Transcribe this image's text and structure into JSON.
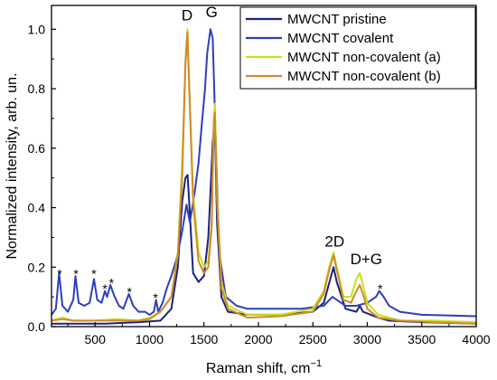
{
  "chart_data": {
    "type": "line",
    "xlabel": "Raman shift, cm",
    "xlabel_sup": "−1",
    "ylabel": "Normalized intensity, arb. un.",
    "xlim": [
      100,
      4000
    ],
    "ylim": [
      0,
      1.08
    ],
    "x_ticks": [
      500,
      1000,
      1500,
      2000,
      2500,
      3000,
      3500,
      4000
    ],
    "y_ticks": [
      0.0,
      0.2,
      0.4,
      0.6,
      0.8,
      1.0
    ],
    "legend_position": "top-right",
    "grid": false,
    "series": [
      {
        "name": "MWCNT pristine",
        "color": "#1a237e",
        "points": [
          [
            100,
            0.01
          ],
          [
            300,
            0.01
          ],
          [
            600,
            0.01
          ],
          [
            900,
            0.015
          ],
          [
            1100,
            0.02
          ],
          [
            1200,
            0.06
          ],
          [
            1260,
            0.2
          ],
          [
            1300,
            0.42
          ],
          [
            1330,
            0.5
          ],
          [
            1350,
            0.51
          ],
          [
            1370,
            0.38
          ],
          [
            1400,
            0.18
          ],
          [
            1450,
            0.15
          ],
          [
            1500,
            0.17
          ],
          [
            1540,
            0.3
          ],
          [
            1560,
            0.45
          ],
          [
            1580,
            0.62
          ],
          [
            1590,
            0.66
          ],
          [
            1605,
            0.6
          ],
          [
            1620,
            0.35
          ],
          [
            1660,
            0.1
          ],
          [
            1720,
            0.05
          ],
          [
            1900,
            0.04
          ],
          [
            2200,
            0.04
          ],
          [
            2500,
            0.05
          ],
          [
            2600,
            0.08
          ],
          [
            2660,
            0.16
          ],
          [
            2690,
            0.2
          ],
          [
            2720,
            0.15
          ],
          [
            2800,
            0.06
          ],
          [
            2900,
            0.05
          ],
          [
            2930,
            0.07
          ],
          [
            2960,
            0.05
          ],
          [
            3100,
            0.03
          ],
          [
            3200,
            0.02
          ],
          [
            3500,
            0.015
          ],
          [
            4000,
            0.01
          ]
        ]
      },
      {
        "name": "MWCNT covalent",
        "color": "#2e3fb8",
        "points": [
          [
            100,
            0.04
          ],
          [
            140,
            0.06
          ],
          [
            170,
            0.18
          ],
          [
            200,
            0.07
          ],
          [
            250,
            0.05
          ],
          [
            300,
            0.09
          ],
          [
            320,
            0.17
          ],
          [
            350,
            0.08
          ],
          [
            400,
            0.07
          ],
          [
            450,
            0.08
          ],
          [
            490,
            0.16
          ],
          [
            520,
            0.09
          ],
          [
            560,
            0.08
          ],
          [
            590,
            0.12
          ],
          [
            610,
            0.1
          ],
          [
            640,
            0.14
          ],
          [
            680,
            0.1
          ],
          [
            720,
            0.07
          ],
          [
            760,
            0.06
          ],
          [
            810,
            0.11
          ],
          [
            850,
            0.07
          ],
          [
            900,
            0.05
          ],
          [
            960,
            0.05
          ],
          [
            1000,
            0.04
          ],
          [
            1040,
            0.05
          ],
          [
            1060,
            0.09
          ],
          [
            1080,
            0.05
          ],
          [
            1120,
            0.08
          ],
          [
            1160,
            0.13
          ],
          [
            1200,
            0.17
          ],
          [
            1250,
            0.23
          ],
          [
            1300,
            0.32
          ],
          [
            1340,
            0.41
          ],
          [
            1370,
            0.35
          ],
          [
            1410,
            0.44
          ],
          [
            1450,
            0.55
          ],
          [
            1480,
            0.68
          ],
          [
            1510,
            0.8
          ],
          [
            1530,
            0.92
          ],
          [
            1560,
            1.0
          ],
          [
            1580,
            0.97
          ],
          [
            1610,
            0.6
          ],
          [
            1640,
            0.25
          ],
          [
            1700,
            0.1
          ],
          [
            1800,
            0.07
          ],
          [
            1900,
            0.06
          ],
          [
            2000,
            0.06
          ],
          [
            2200,
            0.06
          ],
          [
            2400,
            0.06
          ],
          [
            2600,
            0.07
          ],
          [
            2680,
            0.1
          ],
          [
            2720,
            0.09
          ],
          [
            2800,
            0.07
          ],
          [
            2900,
            0.07
          ],
          [
            3000,
            0.08
          ],
          [
            3080,
            0.1
          ],
          [
            3110,
            0.12
          ],
          [
            3150,
            0.1
          ],
          [
            3200,
            0.07
          ],
          [
            3300,
            0.05
          ],
          [
            3500,
            0.04
          ],
          [
            4000,
            0.035
          ]
        ]
      },
      {
        "name": "MWCNT non-covalent (a)",
        "color": "#c6e01c",
        "points": [
          [
            100,
            0.02
          ],
          [
            200,
            0.03
          ],
          [
            300,
            0.02
          ],
          [
            500,
            0.02
          ],
          [
            700,
            0.025
          ],
          [
            900,
            0.02
          ],
          [
            1000,
            0.03
          ],
          [
            1100,
            0.05
          ],
          [
            1200,
            0.1
          ],
          [
            1260,
            0.25
          ],
          [
            1300,
            0.55
          ],
          [
            1330,
            0.9
          ],
          [
            1348,
            1.0
          ],
          [
            1365,
            0.82
          ],
          [
            1400,
            0.45
          ],
          [
            1450,
            0.25
          ],
          [
            1500,
            0.2
          ],
          [
            1540,
            0.22
          ],
          [
            1570,
            0.35
          ],
          [
            1590,
            0.7
          ],
          [
            1600,
            0.75
          ],
          [
            1620,
            0.45
          ],
          [
            1660,
            0.15
          ],
          [
            1720,
            0.07
          ],
          [
            1900,
            0.04
          ],
          [
            2200,
            0.04
          ],
          [
            2500,
            0.06
          ],
          [
            2600,
            0.12
          ],
          [
            2650,
            0.2
          ],
          [
            2690,
            0.25
          ],
          [
            2720,
            0.2
          ],
          [
            2780,
            0.1
          ],
          [
            2850,
            0.1
          ],
          [
            2900,
            0.16
          ],
          [
            2930,
            0.18
          ],
          [
            2960,
            0.14
          ],
          [
            3000,
            0.08
          ],
          [
            3100,
            0.04
          ],
          [
            3300,
            0.02
          ],
          [
            3600,
            0.02
          ],
          [
            4000,
            0.015
          ]
        ]
      },
      {
        "name": "MWCNT non-covalent (b)",
        "color": "#d08a2c",
        "points": [
          [
            100,
            0.02
          ],
          [
            200,
            0.025
          ],
          [
            300,
            0.02
          ],
          [
            500,
            0.02
          ],
          [
            700,
            0.02
          ],
          [
            900,
            0.02
          ],
          [
            1000,
            0.025
          ],
          [
            1100,
            0.05
          ],
          [
            1200,
            0.1
          ],
          [
            1260,
            0.24
          ],
          [
            1300,
            0.5
          ],
          [
            1330,
            0.88
          ],
          [
            1348,
            0.99
          ],
          [
            1365,
            0.8
          ],
          [
            1400,
            0.42
          ],
          [
            1450,
            0.22
          ],
          [
            1500,
            0.18
          ],
          [
            1540,
            0.2
          ],
          [
            1570,
            0.33
          ],
          [
            1590,
            0.68
          ],
          [
            1600,
            0.72
          ],
          [
            1620,
            0.42
          ],
          [
            1660,
            0.13
          ],
          [
            1720,
            0.06
          ],
          [
            1900,
            0.03
          ],
          [
            2200,
            0.035
          ],
          [
            2500,
            0.05
          ],
          [
            2600,
            0.11
          ],
          [
            2650,
            0.19
          ],
          [
            2690,
            0.24
          ],
          [
            2720,
            0.19
          ],
          [
            2780,
            0.09
          ],
          [
            2850,
            0.08
          ],
          [
            2900,
            0.12
          ],
          [
            2930,
            0.14
          ],
          [
            2960,
            0.11
          ],
          [
            3000,
            0.06
          ],
          [
            3100,
            0.03
          ],
          [
            3300,
            0.02
          ],
          [
            3600,
            0.015
          ],
          [
            4000,
            0.01
          ]
        ]
      }
    ],
    "annotations": [
      {
        "text": "D",
        "x": 1345,
        "y": 1.03
      },
      {
        "text": "G",
        "x": 1570,
        "y": 1.04
      },
      {
        "text": "2D",
        "x": 2700,
        "y": 0.27
      },
      {
        "text": "D+G",
        "x": 2990,
        "y": 0.21
      },
      {
        "text": "*",
        "x": 175,
        "y": 0.19
      },
      {
        "text": "*",
        "x": 325,
        "y": 0.19
      },
      {
        "text": "*",
        "x": 490,
        "y": 0.19
      },
      {
        "text": "*",
        "x": 590,
        "y": 0.14
      },
      {
        "text": "*",
        "x": 650,
        "y": 0.16
      },
      {
        "text": "*",
        "x": 815,
        "y": 0.13
      },
      {
        "text": "*",
        "x": 1055,
        "y": 0.11
      },
      {
        "text": "*",
        "x": 3120,
        "y": 0.14
      }
    ]
  }
}
